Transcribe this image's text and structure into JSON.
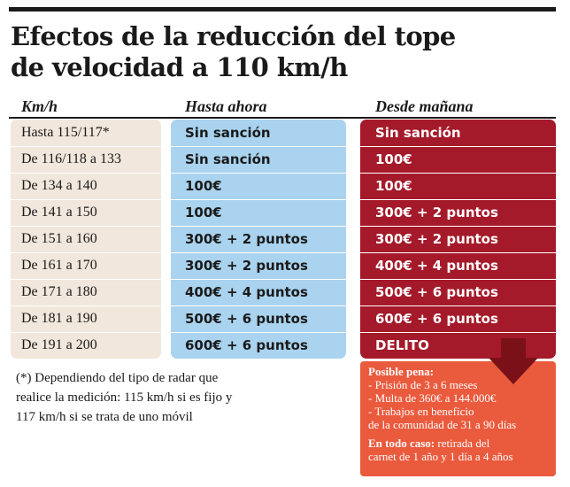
{
  "title_line1": "Efectos de la reducción del tope",
  "title_line2": "de velocidad a 110 km/h",
  "headers": {
    "kmh": "Km/h",
    "now": "Hasta ahora",
    "next": "Desde mañana"
  },
  "rows": [
    {
      "kmh": "Hasta 115/117*",
      "now": "Sin sanción",
      "next": "Sin sanción"
    },
    {
      "kmh": "De 116/118 a 133",
      "now": "Sin sanción",
      "next": "100€"
    },
    {
      "kmh": "De 134 a 140",
      "now": "100€",
      "next": "100€"
    },
    {
      "kmh": "De 141 a 150",
      "now": "100€",
      "next": "300€ + 2 puntos"
    },
    {
      "kmh": "De 151 a 160",
      "now": "300€ + 2 puntos",
      "next": "300€ + 2 puntos"
    },
    {
      "kmh": "De 161 a 170",
      "now": "300€ + 2 puntos",
      "next": "400€ + 4 puntos"
    },
    {
      "kmh": "De 171 a 180",
      "now": "400€ + 4 puntos",
      "next": "500€ + 6 puntos"
    },
    {
      "kmh": "De 181 a 190",
      "now": "500€ + 6 puntos",
      "next": "600€ + 6 puntos"
    },
    {
      "kmh": "De 191 a 200",
      "now": "600€ + 6 puntos",
      "next": "DELITO"
    }
  ],
  "footnote": {
    "line1": "(*) Dependiendo del tipo de radar que",
    "line2": "realice la medición: 115 km/h si es fijo y",
    "line3": "117 km/h si se trata de uno móvil"
  },
  "penalty": {
    "heading": "Posible pena:",
    "item1": "- Prisión de 3 a 6 meses",
    "item2": "- Multa de 360€ a 144.000€",
    "item3a": "- Trabajos en beneficio",
    "item3b": "de la comunidad de 31 a 90 días",
    "always_label": "En todo caso:",
    "always_text": " retirada del",
    "always_text2": "carnet de 1 año y 1 día a 4 años"
  },
  "colors": {
    "title": "#1a1a1a",
    "kmh_bg": "#f2e7dc",
    "now_bg": "#a9d3ef",
    "next_bg": "#a41a2a",
    "penalty_bg": "#ea5a3d",
    "arrow": "#7a1119"
  }
}
